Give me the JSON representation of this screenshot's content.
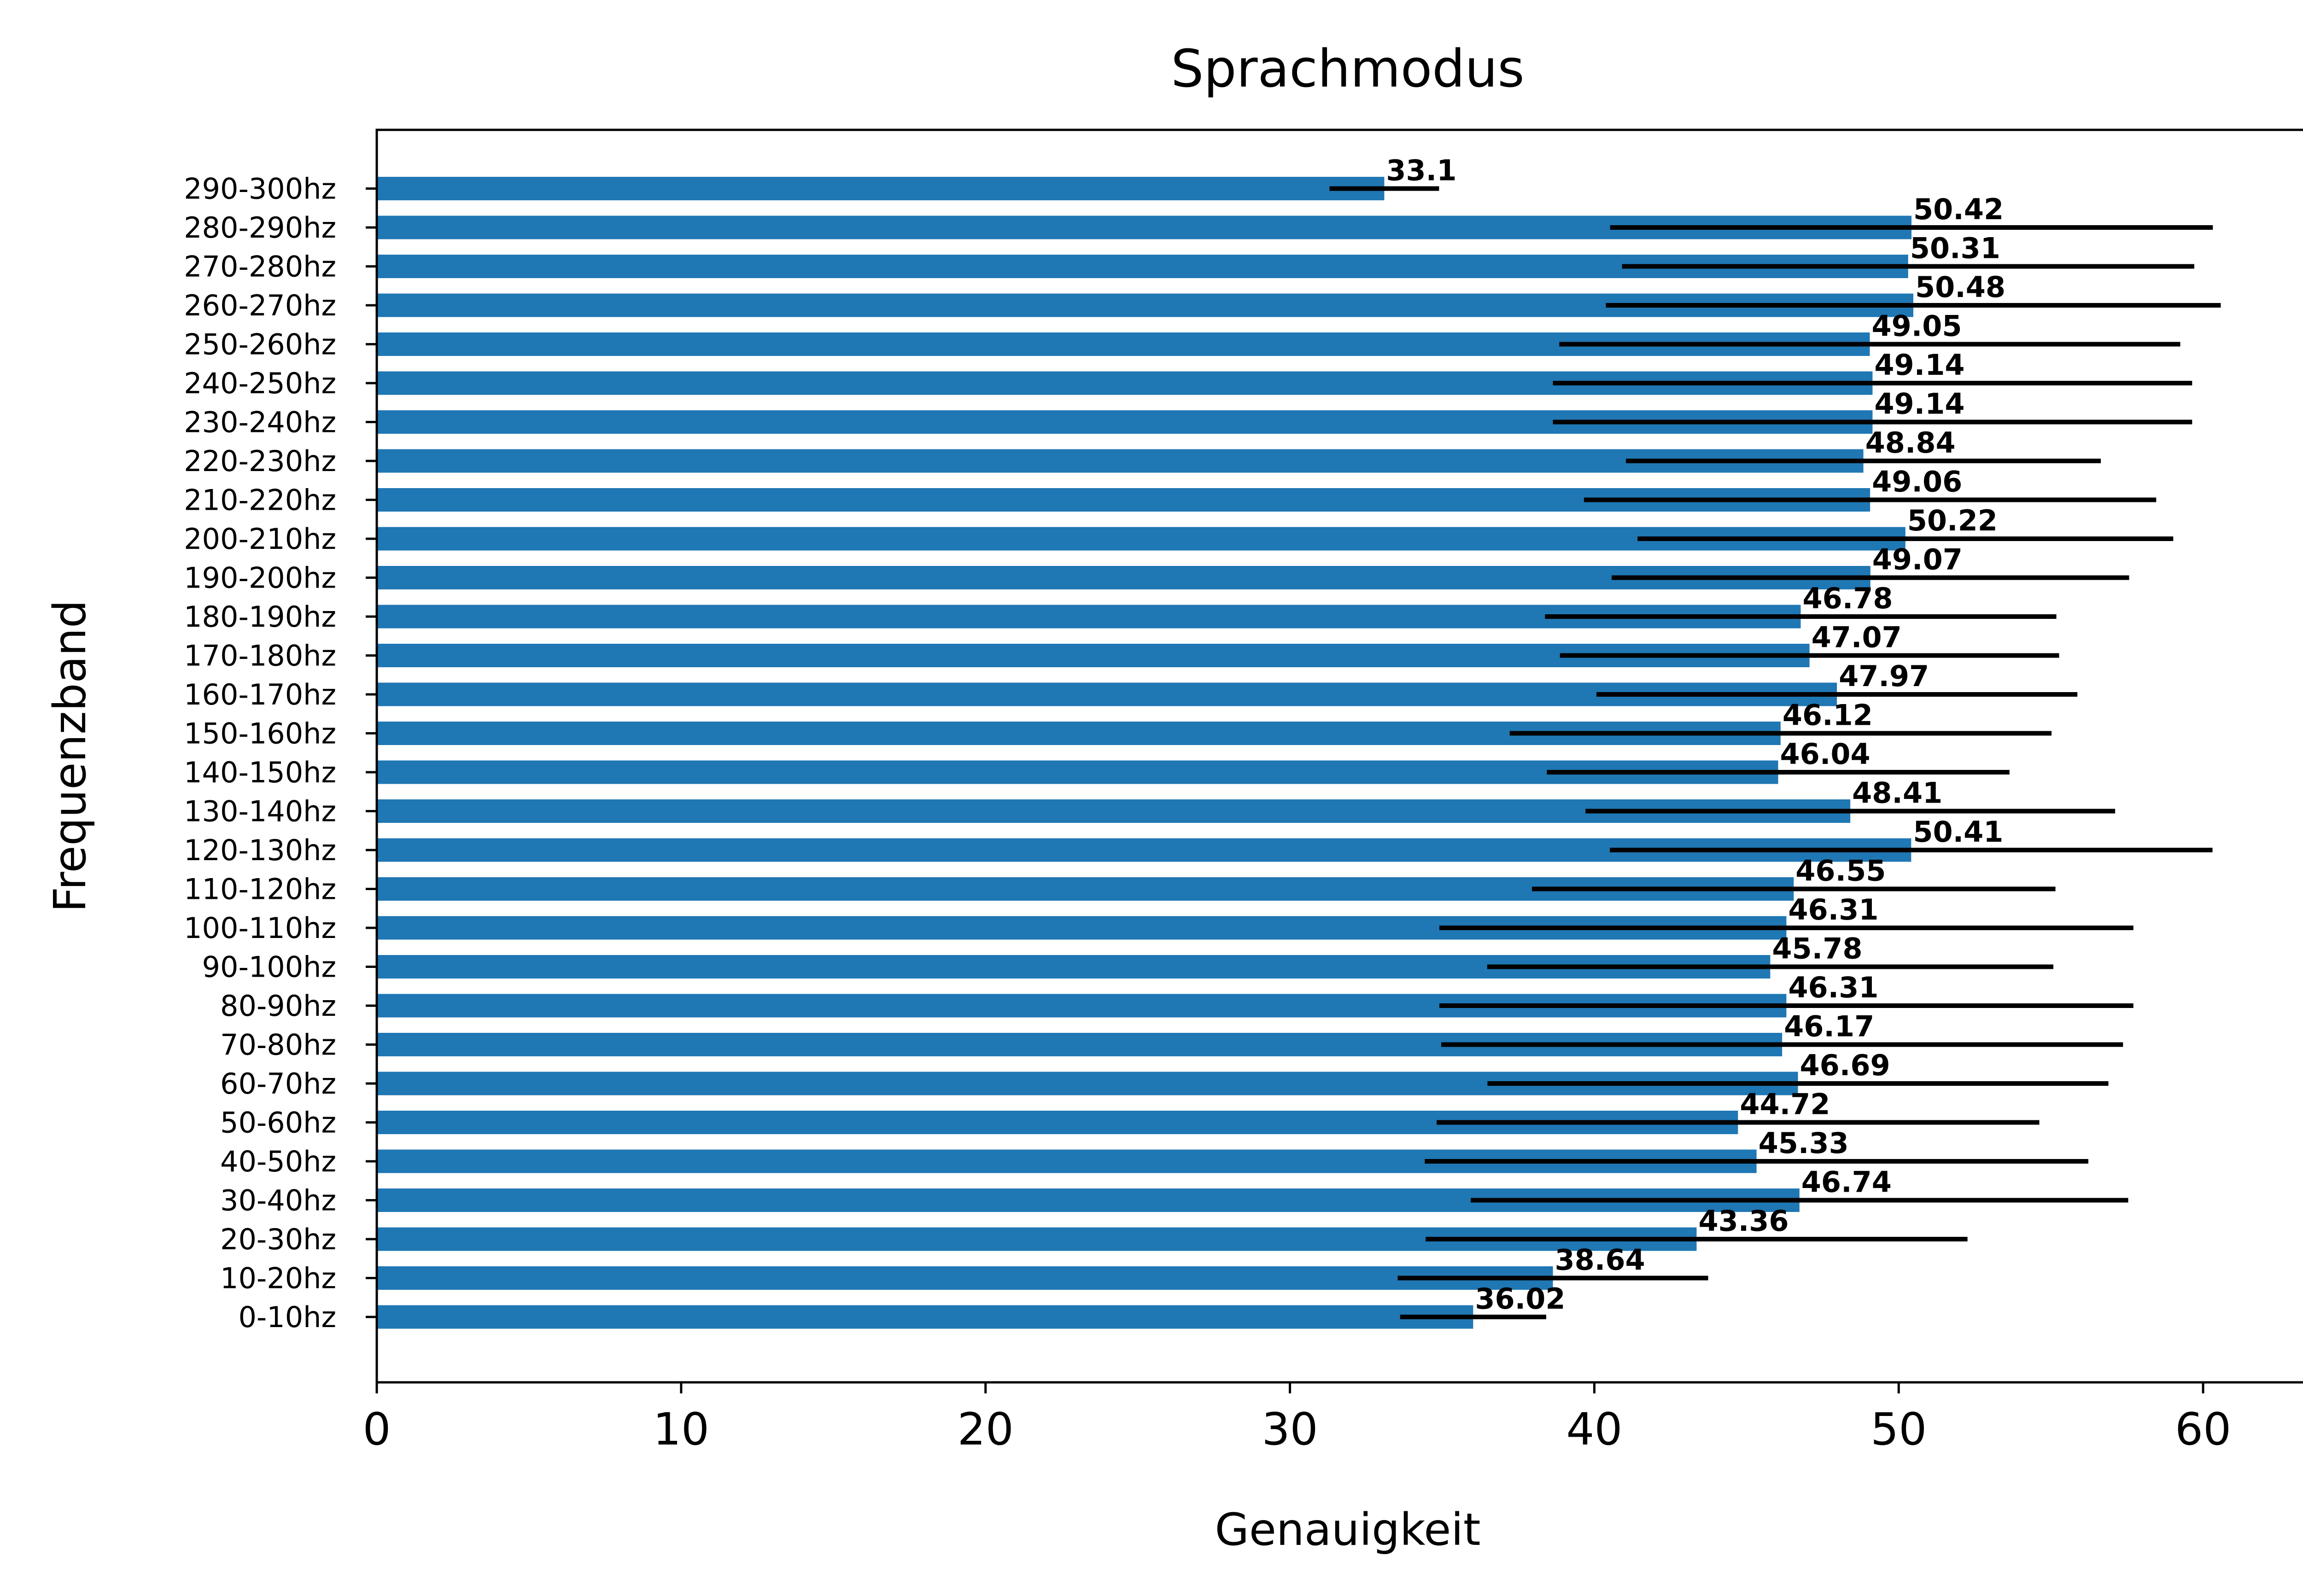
{
  "chart_data": {
    "type": "bar",
    "orientation": "horizontal",
    "title": "Sprachmodus",
    "xlabel": "Genauigkeit",
    "ylabel": "Frequenzband",
    "xlim": [
      0,
      63.6
    ],
    "xticks": [
      0,
      10,
      20,
      30,
      40,
      50,
      60
    ],
    "grid": false,
    "bar_color": "#1f77b4",
    "error_color": "#000000",
    "categories": [
      "0-10hz",
      "10-20hz",
      "20-30hz",
      "30-40hz",
      "40-50hz",
      "50-60hz",
      "60-70hz",
      "70-80hz",
      "80-90hz",
      "90-100hz",
      "100-110hz",
      "110-120hz",
      "120-130hz",
      "130-140hz",
      "140-150hz",
      "150-160hz",
      "160-170hz",
      "170-180hz",
      "180-190hz",
      "190-200hz",
      "200-210hz",
      "210-220hz",
      "220-230hz",
      "230-240hz",
      "240-250hz",
      "250-260hz",
      "260-270hz",
      "270-280hz",
      "280-290hz",
      "290-300hz"
    ],
    "values": [
      36.02,
      38.64,
      43.36,
      46.74,
      45.33,
      44.72,
      46.69,
      46.17,
      46.31,
      45.78,
      46.31,
      46.55,
      50.41,
      48.41,
      46.04,
      46.12,
      47.97,
      47.07,
      46.78,
      49.07,
      50.22,
      49.06,
      48.84,
      49.14,
      49.14,
      49.05,
      50.48,
      50.31,
      50.42,
      33.1
    ],
    "value_labels": [
      "36.02",
      "38.64",
      "43.36",
      "46.74",
      "45.33",
      "44.72",
      "46.69",
      "46.17",
      "46.31",
      "45.78",
      "46.31",
      "46.55",
      "50.41",
      "48.41",
      "46.04",
      "46.12",
      "47.97",
      "47.07",
      "46.78",
      "49.07",
      "50.22",
      "49.06",
      "48.84",
      "49.14",
      "49.14",
      "49.05",
      "50.48",
      "50.31",
      "50.42",
      "33.1"
    ],
    "errors": [
      2.4,
      5.1,
      8.9,
      10.8,
      10.9,
      9.9,
      10.2,
      11.2,
      11.4,
      9.3,
      11.4,
      8.6,
      9.9,
      8.7,
      7.6,
      8.9,
      7.9,
      8.2,
      8.4,
      8.5,
      8.8,
      9.4,
      7.8,
      10.5,
      10.5,
      10.2,
      10.1,
      9.4,
      9.9,
      1.8
    ]
  }
}
